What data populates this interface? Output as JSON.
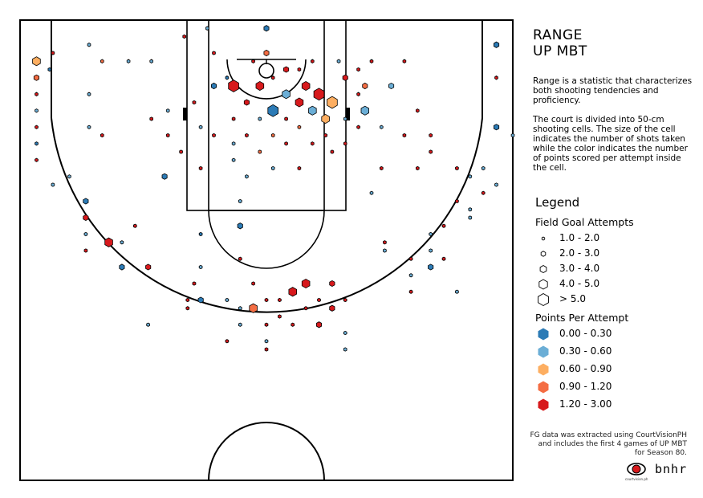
{
  "title_line1": "RANGE",
  "title_line2": "UP MBT",
  "description_p1": "Range is a statistic that characterizes both shooting tendencies and proficiency.",
  "description_p2": "The court is divided into 50-cm shooting cells. The size of the cell indicates the number of shots taken while the color indicates the number of points scored per attempt inside the cell.",
  "legend": {
    "title": "Legend",
    "size_title": "Field Goal Attempts",
    "size_bins": [
      "1.0 - 2.0",
      "2.0 - 3.0",
      "3.0 - 4.0",
      "4.0 - 5.0",
      "> 5.0"
    ],
    "color_title": "Points Per Attempt",
    "color_bins": [
      {
        "label": "0.00 - 0.30",
        "color": "#2c7bb6"
      },
      {
        "label": "0.30 - 0.60",
        "color": "#6baed6"
      },
      {
        "label": "0.60 - 0.90",
        "color": "#fdae61"
      },
      {
        "label": "0.90 - 1.20",
        "color": "#f46d43"
      },
      {
        "label": "1.20 - 3.00",
        "color": "#d7191c"
      }
    ]
  },
  "footer": "FG data was extracted using CourtVisionPH and includes the first 4 games of UP MBT for Season 80.",
  "logo_text": "bnhr",
  "logo_caption": "courtvision.ph",
  "chart_data": {
    "type": "hexbin-shot-chart",
    "x_unit": "meters from left sideline",
    "y_unit": "meters from baseline",
    "xlim": [
      0,
      15
    ],
    "ylim": [
      0,
      14
    ],
    "shots": [
      {
        "x": 5.0,
        "y": 0.5,
        "s": 1,
        "c": 4
      },
      {
        "x": 7.5,
        "y": 0.25,
        "s": 2,
        "c": 0
      },
      {
        "x": 2.1,
        "y": 0.75,
        "s": 1,
        "c": 1
      },
      {
        "x": 14.5,
        "y": 0.75,
        "s": 2,
        "c": 0
      },
      {
        "x": 0.5,
        "y": 1.25,
        "s": 3,
        "c": 2
      },
      {
        "x": 0.5,
        "y": 1.75,
        "s": 2,
        "c": 3
      },
      {
        "x": 0.5,
        "y": 2.25,
        "s": 1,
        "c": 4
      },
      {
        "x": 0.5,
        "y": 2.75,
        "s": 1,
        "c": 1
      },
      {
        "x": 0.5,
        "y": 3.25,
        "s": 1,
        "c": 4
      },
      {
        "x": 0.5,
        "y": 3.75,
        "s": 1,
        "c": 0
      },
      {
        "x": 0.5,
        "y": 4.25,
        "s": 1,
        "c": 4
      },
      {
        "x": 0.9,
        "y": 1.5,
        "s": 1,
        "c": 0
      },
      {
        "x": 1.0,
        "y": 1.0,
        "s": 1,
        "c": 4
      },
      {
        "x": 2.1,
        "y": 2.25,
        "s": 1,
        "c": 1
      },
      {
        "x": 2.1,
        "y": 3.25,
        "s": 1,
        "c": 1
      },
      {
        "x": 2.5,
        "y": 1.25,
        "s": 1,
        "c": 3
      },
      {
        "x": 2.5,
        "y": 3.5,
        "s": 1,
        "c": 4
      },
      {
        "x": 3.3,
        "y": 1.25,
        "s": 1,
        "c": 1
      },
      {
        "x": 4.0,
        "y": 1.25,
        "s": 1,
        "c": 1
      },
      {
        "x": 4.0,
        "y": 3.0,
        "s": 1,
        "c": 4
      },
      {
        "x": 4.5,
        "y": 2.75,
        "s": 1,
        "c": 1
      },
      {
        "x": 4.5,
        "y": 3.5,
        "s": 1,
        "c": 4
      },
      {
        "x": 4.9,
        "y": 4.0,
        "s": 1,
        "c": 4
      },
      {
        "x": 5.3,
        "y": 2.5,
        "s": 1,
        "c": 4
      },
      {
        "x": 5.5,
        "y": 3.25,
        "s": 1,
        "c": 1
      },
      {
        "x": 5.5,
        "y": 4.5,
        "s": 1,
        "c": 4
      },
      {
        "x": 5.7,
        "y": 0.25,
        "s": 1,
        "c": 1
      },
      {
        "x": 5.9,
        "y": 1.0,
        "s": 1,
        "c": 4
      },
      {
        "x": 5.9,
        "y": 2.0,
        "s": 2,
        "c": 0
      },
      {
        "x": 5.9,
        "y": 3.5,
        "s": 1,
        "c": 4
      },
      {
        "x": 6.3,
        "y": 1.75,
        "s": 1,
        "c": 0
      },
      {
        "x": 6.5,
        "y": 2.0,
        "s": 4,
        "c": 4
      },
      {
        "x": 6.5,
        "y": 3.0,
        "s": 1,
        "c": 4
      },
      {
        "x": 6.5,
        "y": 3.75,
        "s": 1,
        "c": 1
      },
      {
        "x": 6.5,
        "y": 4.25,
        "s": 1,
        "c": 1
      },
      {
        "x": 6.9,
        "y": 2.5,
        "s": 2,
        "c": 4
      },
      {
        "x": 6.9,
        "y": 3.5,
        "s": 1,
        "c": 4
      },
      {
        "x": 6.9,
        "y": 4.75,
        "s": 1,
        "c": 1
      },
      {
        "x": 7.1,
        "y": 1.25,
        "s": 1,
        "c": 4
      },
      {
        "x": 7.3,
        "y": 2.0,
        "s": 3,
        "c": 4
      },
      {
        "x": 7.3,
        "y": 3.0,
        "s": 1,
        "c": 1
      },
      {
        "x": 7.3,
        "y": 4.0,
        "s": 1,
        "c": 3
      },
      {
        "x": 7.5,
        "y": 1.0,
        "s": 2,
        "c": 3
      },
      {
        "x": 7.7,
        "y": 1.75,
        "s": 1,
        "c": 4
      },
      {
        "x": 7.7,
        "y": 2.75,
        "s": 4,
        "c": 0
      },
      {
        "x": 7.7,
        "y": 3.5,
        "s": 1,
        "c": 3
      },
      {
        "x": 7.7,
        "y": 4.5,
        "s": 1,
        "c": 1
      },
      {
        "x": 8.1,
        "y": 1.5,
        "s": 2,
        "c": 4
      },
      {
        "x": 8.1,
        "y": 2.25,
        "s": 3,
        "c": 1
      },
      {
        "x": 8.1,
        "y": 3.0,
        "s": 1,
        "c": 4
      },
      {
        "x": 8.1,
        "y": 3.75,
        "s": 1,
        "c": 4
      },
      {
        "x": 8.5,
        "y": 2.5,
        "s": 3,
        "c": 4
      },
      {
        "x": 8.5,
        "y": 1.5,
        "s": 1,
        "c": 4
      },
      {
        "x": 8.5,
        "y": 3.25,
        "s": 1,
        "c": 3
      },
      {
        "x": 8.5,
        "y": 4.5,
        "s": 1,
        "c": 4
      },
      {
        "x": 8.7,
        "y": 2.0,
        "s": 3,
        "c": 4
      },
      {
        "x": 8.9,
        "y": 1.25,
        "s": 1,
        "c": 4
      },
      {
        "x": 8.9,
        "y": 2.75,
        "s": 3,
        "c": 1
      },
      {
        "x": 8.9,
        "y": 3.75,
        "s": 1,
        "c": 4
      },
      {
        "x": 9.1,
        "y": 2.25,
        "s": 4,
        "c": 4
      },
      {
        "x": 9.3,
        "y": 3.0,
        "s": 3,
        "c": 2
      },
      {
        "x": 9.3,
        "y": 3.5,
        "s": 1,
        "c": 4
      },
      {
        "x": 9.5,
        "y": 2.5,
        "s": 4,
        "c": 2
      },
      {
        "x": 9.5,
        "y": 4.0,
        "s": 1,
        "c": 4
      },
      {
        "x": 9.7,
        "y": 1.25,
        "s": 1,
        "c": 1
      },
      {
        "x": 9.9,
        "y": 1.75,
        "s": 2,
        "c": 4
      },
      {
        "x": 9.9,
        "y": 3.0,
        "s": 1,
        "c": 1
      },
      {
        "x": 9.9,
        "y": 3.75,
        "s": 1,
        "c": 4
      },
      {
        "x": 10.3,
        "y": 1.5,
        "s": 1,
        "c": 4
      },
      {
        "x": 10.3,
        "y": 2.25,
        "s": 1,
        "c": 4
      },
      {
        "x": 10.3,
        "y": 3.25,
        "s": 1,
        "c": 4
      },
      {
        "x": 10.5,
        "y": 2.0,
        "s": 2,
        "c": 3
      },
      {
        "x": 10.5,
        "y": 2.75,
        "s": 3,
        "c": 1
      },
      {
        "x": 10.7,
        "y": 1.25,
        "s": 1,
        "c": 4
      },
      {
        "x": 11.0,
        "y": 3.25,
        "s": 1,
        "c": 1
      },
      {
        "x": 11.0,
        "y": 4.5,
        "s": 1,
        "c": 4
      },
      {
        "x": 11.3,
        "y": 2.0,
        "s": 2,
        "c": 1
      },
      {
        "x": 11.7,
        "y": 1.25,
        "s": 1,
        "c": 4
      },
      {
        "x": 11.7,
        "y": 3.5,
        "s": 1,
        "c": 4
      },
      {
        "x": 12.1,
        "y": 2.75,
        "s": 1,
        "c": 4
      },
      {
        "x": 12.1,
        "y": 4.5,
        "s": 1,
        "c": 4
      },
      {
        "x": 12.5,
        "y": 3.5,
        "s": 1,
        "c": 4
      },
      {
        "x": 12.5,
        "y": 4.0,
        "s": 1,
        "c": 4
      },
      {
        "x": 13.3,
        "y": 4.5,
        "s": 1,
        "c": 4
      },
      {
        "x": 14.1,
        "y": 4.5,
        "s": 1,
        "c": 1
      },
      {
        "x": 14.5,
        "y": 1.75,
        "s": 1,
        "c": 4
      },
      {
        "x": 14.5,
        "y": 3.25,
        "s": 2,
        "c": 0
      },
      {
        "x": 15.0,
        "y": 3.5,
        "s": 1,
        "c": 1
      },
      {
        "x": 1.5,
        "y": 4.75,
        "s": 1,
        "c": 1
      },
      {
        "x": 1.0,
        "y": 5.0,
        "s": 1,
        "c": 1
      },
      {
        "x": 4.4,
        "y": 4.75,
        "s": 2,
        "c": 0
      },
      {
        "x": 2.0,
        "y": 5.5,
        "s": 2,
        "c": 0
      },
      {
        "x": 2.0,
        "y": 6.0,
        "s": 2,
        "c": 4
      },
      {
        "x": 2.0,
        "y": 6.5,
        "s": 1,
        "c": 1
      },
      {
        "x": 2.0,
        "y": 7.0,
        "s": 1,
        "c": 4
      },
      {
        "x": 2.7,
        "y": 6.75,
        "s": 3,
        "c": 4
      },
      {
        "x": 3.1,
        "y": 7.5,
        "s": 2,
        "c": 0
      },
      {
        "x": 3.1,
        "y": 6.75,
        "s": 1,
        "c": 1
      },
      {
        "x": 3.5,
        "y": 6.25,
        "s": 1,
        "c": 4
      },
      {
        "x": 3.9,
        "y": 7.5,
        "s": 2,
        "c": 4
      },
      {
        "x": 3.9,
        "y": 9.25,
        "s": 1,
        "c": 1
      },
      {
        "x": 5.5,
        "y": 6.5,
        "s": 1,
        "c": 0
      },
      {
        "x": 5.5,
        "y": 7.5,
        "s": 1,
        "c": 1
      },
      {
        "x": 5.3,
        "y": 8.0,
        "s": 1,
        "c": 4
      },
      {
        "x": 5.1,
        "y": 8.5,
        "s": 1,
        "c": 4
      },
      {
        "x": 5.1,
        "y": 8.75,
        "s": 1,
        "c": 4
      },
      {
        "x": 5.5,
        "y": 8.5,
        "s": 2,
        "c": 0
      },
      {
        "x": 6.3,
        "y": 8.5,
        "s": 1,
        "c": 1
      },
      {
        "x": 6.3,
        "y": 9.75,
        "s": 1,
        "c": 4
      },
      {
        "x": 6.7,
        "y": 5.5,
        "s": 1,
        "c": 1
      },
      {
        "x": 6.7,
        "y": 6.25,
        "s": 2,
        "c": 0
      },
      {
        "x": 6.7,
        "y": 7.25,
        "s": 1,
        "c": 4
      },
      {
        "x": 6.7,
        "y": 8.75,
        "s": 1,
        "c": 1
      },
      {
        "x": 6.7,
        "y": 9.25,
        "s": 1,
        "c": 1
      },
      {
        "x": 7.1,
        "y": 8.0,
        "s": 1,
        "c": 4
      },
      {
        "x": 7.1,
        "y": 8.75,
        "s": 3,
        "c": 3
      },
      {
        "x": 7.5,
        "y": 8.5,
        "s": 1,
        "c": 4
      },
      {
        "x": 7.5,
        "y": 9.25,
        "s": 1,
        "c": 4
      },
      {
        "x": 7.5,
        "y": 9.75,
        "s": 1,
        "c": 1
      },
      {
        "x": 7.5,
        "y": 10.0,
        "s": 1,
        "c": 4
      },
      {
        "x": 7.9,
        "y": 8.5,
        "s": 1,
        "c": 4
      },
      {
        "x": 7.9,
        "y": 9.0,
        "s": 1,
        "c": 4
      },
      {
        "x": 8.3,
        "y": 8.25,
        "s": 3,
        "c": 4
      },
      {
        "x": 8.3,
        "y": 9.25,
        "s": 1,
        "c": 4
      },
      {
        "x": 8.7,
        "y": 8.0,
        "s": 3,
        "c": 4
      },
      {
        "x": 8.7,
        "y": 8.75,
        "s": 1,
        "c": 4
      },
      {
        "x": 9.1,
        "y": 8.5,
        "s": 1,
        "c": 4
      },
      {
        "x": 9.1,
        "y": 9.25,
        "s": 2,
        "c": 4
      },
      {
        "x": 9.5,
        "y": 8.0,
        "s": 2,
        "c": 4
      },
      {
        "x": 9.5,
        "y": 8.75,
        "s": 2,
        "c": 4
      },
      {
        "x": 9.9,
        "y": 8.5,
        "s": 1,
        "c": 4
      },
      {
        "x": 9.9,
        "y": 9.5,
        "s": 1,
        "c": 1
      },
      {
        "x": 9.9,
        "y": 10.0,
        "s": 1,
        "c": 1
      },
      {
        "x": 10.7,
        "y": 5.25,
        "s": 1,
        "c": 1
      },
      {
        "x": 11.1,
        "y": 6.75,
        "s": 1,
        "c": 4
      },
      {
        "x": 11.1,
        "y": 7.0,
        "s": 1,
        "c": 1
      },
      {
        "x": 11.9,
        "y": 7.25,
        "s": 1,
        "c": 4
      },
      {
        "x": 11.9,
        "y": 7.75,
        "s": 1,
        "c": 1
      },
      {
        "x": 11.9,
        "y": 8.25,
        "s": 1,
        "c": 4
      },
      {
        "x": 12.5,
        "y": 6.5,
        "s": 1,
        "c": 1
      },
      {
        "x": 12.5,
        "y": 7.0,
        "s": 1,
        "c": 1
      },
      {
        "x": 12.5,
        "y": 7.5,
        "s": 2,
        "c": 0
      },
      {
        "x": 12.9,
        "y": 6.25,
        "s": 1,
        "c": 4
      },
      {
        "x": 12.9,
        "y": 7.25,
        "s": 1,
        "c": 4
      },
      {
        "x": 13.3,
        "y": 5.5,
        "s": 1,
        "c": 4
      },
      {
        "x": 13.3,
        "y": 8.25,
        "s": 1,
        "c": 1
      },
      {
        "x": 13.7,
        "y": 5.75,
        "s": 1,
        "c": 1
      },
      {
        "x": 13.7,
        "y": 6.0,
        "s": 1,
        "c": 1
      },
      {
        "x": 14.5,
        "y": 5.0,
        "s": 1,
        "c": 1
      },
      {
        "x": 14.1,
        "y": 5.25,
        "s": 1,
        "c": 4
      },
      {
        "x": 13.7,
        "y": 4.75,
        "s": 1,
        "c": 1
      }
    ]
  }
}
